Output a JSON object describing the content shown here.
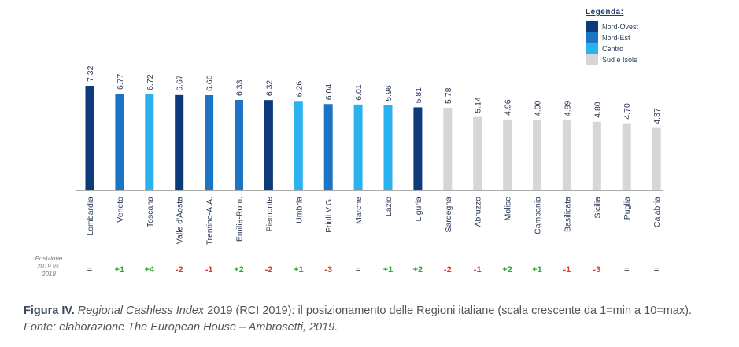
{
  "chart_data": {
    "type": "bar",
    "categories": [
      "Lombardia",
      "Veneto",
      "Toscana",
      "Valle d'Aosta",
      "Trentino-A.A.",
      "Emilia-Rom.",
      "Piemonte",
      "Umbria",
      "Friuli V.G.",
      "Marche",
      "Lazio",
      "Liguria",
      "Sardegna",
      "Abruzzo",
      "Molise",
      "Campania",
      "Basilicata",
      "Sicilia",
      "Puglia",
      "Calabria"
    ],
    "values": [
      7.32,
      6.77,
      6.72,
      6.67,
      6.66,
      6.33,
      6.32,
      6.26,
      6.04,
      6.01,
      5.96,
      5.81,
      5.78,
      5.14,
      4.96,
      4.9,
      4.89,
      4.8,
      4.7,
      4.37
    ],
    "value_labels": [
      "7.32",
      "6.77",
      "6.72",
      "6.67",
      "6.66",
      "6.33",
      "6.32",
      "6.26",
      "6.04",
      "6.01",
      "5.96",
      "5.81",
      "5.78",
      "5.14",
      "4.96",
      "4.90",
      "4.89",
      "4.80",
      "4.70",
      "4.37"
    ],
    "groups": [
      "Nord-Ovest",
      "Nord-Est",
      "Centro",
      "Nord-Ovest",
      "Nord-Est",
      "Nord-Est",
      "Nord-Ovest",
      "Centro",
      "Nord-Est",
      "Centro",
      "Centro",
      "Nord-Ovest",
      "Sud e Isole",
      "Sud e Isole",
      "Sud e Isole",
      "Sud e Isole",
      "Sud e Isole",
      "Sud e Isole",
      "Sud e Isole",
      "Sud e Isole"
    ],
    "ylim": [
      0,
      8
    ],
    "grid": false,
    "legend_position": "top-right",
    "position_change_label": [
      "Posizione",
      "2019 vs.",
      "2018"
    ],
    "position_change": [
      "=",
      "+1",
      "+4",
      "-2",
      "-1",
      "+2",
      "-2",
      "+1",
      "-3",
      "=",
      "+1",
      "+2",
      "-2",
      "-1",
      "+2",
      "+1",
      "-1",
      "-3",
      "=",
      "="
    ]
  },
  "legend": {
    "title": "Legenda:",
    "items": [
      {
        "label": "Nord-Ovest",
        "color": "#0d3a7a"
      },
      {
        "label": "Nord-Est",
        "color": "#1b74c4"
      },
      {
        "label": "Centro",
        "color": "#2bb2ee"
      },
      {
        "label": "Sud e Isole",
        "color": "#d6d6d6"
      }
    ]
  },
  "colors": {
    "positive": "#2ea836",
    "negative": "#d63b32",
    "neutral": "#555555",
    "axis": "#555555",
    "text": "#2b3a57"
  },
  "caption": {
    "figure_label": "Figura IV.",
    "title_italic": "Regional Cashless Index",
    "title_rest": " 2019 (RCI 2019): il posizionamento delle Regioni italiane (scala crescente da 1=min a 10=max). ",
    "source": "Fonte: elaborazione The European House – Ambrosetti, 2019."
  }
}
